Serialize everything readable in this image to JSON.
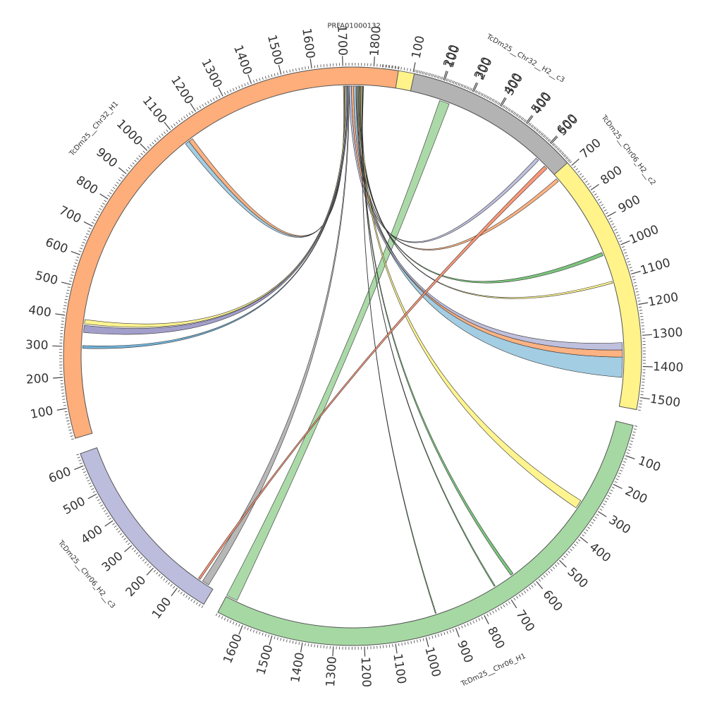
{
  "chart_data": {
    "type": "circos",
    "contigs": [
      {
        "name": "PRFA01000132",
        "length": 80,
        "color": "#9ecae1",
        "ticks": []
      },
      {
        "name": "TcDm25__Chr06_H2__c2",
        "length": 1540,
        "color": "#fff38a",
        "ticks": [
          100,
          200,
          300,
          400,
          500,
          600,
          700,
          800,
          900,
          1000,
          1100,
          1200,
          1300,
          1400,
          1500
        ]
      },
      {
        "name": "TcDm25__Chr06_H1",
        "length": 1690,
        "color": "#a6d8a3",
        "ticks": [
          100,
          200,
          300,
          400,
          500,
          600,
          700,
          800,
          900,
          1000,
          1100,
          1200,
          1300,
          1400,
          1500,
          1600
        ]
      },
      {
        "name": "TcDm25__Chr06_H2__c3",
        "length": 640,
        "color": "#bcbddc",
        "ticks": [
          100,
          200,
          300,
          400,
          500,
          600
        ]
      },
      {
        "name": "TcDm25__Chr32_H1",
        "length": 1880,
        "color": "#fdae7b",
        "ticks": [
          100,
          200,
          300,
          400,
          500,
          600,
          700,
          800,
          900,
          1000,
          1100,
          1200,
          1300,
          1400,
          1500,
          1600,
          1700,
          1800
        ]
      },
      {
        "name": "TcDm25__Chr32__H2__c3",
        "length": 580,
        "color": "#b3b3b3",
        "ticks": [
          100,
          200,
          300,
          400,
          500
        ]
      }
    ],
    "links": [
      {
        "from": [
          "TcDm25__Chr06_H1",
          1650,
          1690
        ],
        "to": [
          "TcDm25__Chr06_H2__c2",
          210,
          245
        ],
        "color": "#a6d8a3"
      },
      {
        "from": [
          "PRFA01000132",
          40,
          48
        ],
        "to": [
          "TcDm25__Chr06_H2__c2",
          1370,
          1440
        ],
        "color": "#9ecae1"
      },
      {
        "from": [
          "PRFA01000132",
          32,
          40
        ],
        "to": [
          "TcDm25__Chr06_H2__c2",
          1345,
          1370
        ],
        "color": "#fdae7b"
      },
      {
        "from": [
          "PRFA01000132",
          24,
          32
        ],
        "to": [
          "TcDm25__Chr06_H2__c2",
          1320,
          1345
        ],
        "color": "#bcbddc"
      },
      {
        "from": [
          "PRFA01000132",
          50,
          53
        ],
        "to": [
          "TcDm25__Chr06_H2__c2",
          600,
          612
        ],
        "color": "#bcbddc"
      },
      {
        "from": [
          "PRFA01000132",
          54,
          57
        ],
        "to": [
          "TcDm25__Chr06_H2__c2",
          700,
          712
        ],
        "color": "#fdae7b"
      },
      {
        "from": [
          "PRFA01000132",
          58,
          61
        ],
        "to": [
          "TcDm25__Chr06_H2__c2",
          1000,
          1012
        ],
        "color": "#74c476"
      },
      {
        "from": [
          "PRFA01000132",
          62,
          64
        ],
        "to": [
          "TcDm25__Chr06_H2__c2",
          1105,
          1112
        ],
        "color": "#fff38a"
      },
      {
        "from": [
          "PRFA01000132",
          66,
          70
        ],
        "to": [
          "TcDm25__Chr06_H1",
          300,
          330
        ],
        "color": "#fff38a"
      },
      {
        "from": [
          "PRFA01000132",
          70,
          72
        ],
        "to": [
          "TcDm25__Chr06_H1",
          645,
          655
        ],
        "color": "#74c476"
      },
      {
        "from": [
          "PRFA01000132",
          72,
          73
        ],
        "to": [
          "TcDm25__Chr06_H1",
          720,
          724
        ],
        "color": "#74c476"
      },
      {
        "from": [
          "PRFA01000132",
          73,
          74
        ],
        "to": [
          "TcDm25__Chr06_H1",
          945,
          948
        ],
        "color": "#74c476"
      },
      {
        "from": [
          "PRFA01000132",
          4,
          7
        ],
        "to": [
          "TcDm25__Chr32_H1",
          1125,
          1140
        ],
        "color": "#fdae7b"
      },
      {
        "from": [
          "PRFA01000132",
          7,
          10
        ],
        "to": [
          "TcDm25__Chr32_H1",
          1110,
          1125
        ],
        "color": "#9ecae1"
      },
      {
        "from": [
          "PRFA01000132",
          10,
          14
        ],
        "to": [
          "TcDm25__Chr32_H1",
          380,
          395
        ],
        "color": "#fff38a"
      },
      {
        "from": [
          "PRFA01000132",
          14,
          18
        ],
        "to": [
          "TcDm25__Chr32_H1",
          350,
          375
        ],
        "color": "#9e9ac8"
      },
      {
        "from": [
          "PRFA01000132",
          18,
          21
        ],
        "to": [
          "TcDm25__Chr32_H1",
          295,
          305
        ],
        "color": "#6baed6"
      },
      {
        "from": [
          "PRFA01000132",
          21,
          24
        ],
        "to": [
          "TcDm25__Chr06_H2__c3",
          20,
          45
        ],
        "color": "#b3b3b3"
      },
      {
        "from": [
          "TcDm25__Chr32__H2__c3",
          535,
          548
        ],
        "to": [
          "TcDm25__Chr06_H2__c3",
          55,
          62
        ],
        "color": "#fc9272"
      }
    ]
  }
}
